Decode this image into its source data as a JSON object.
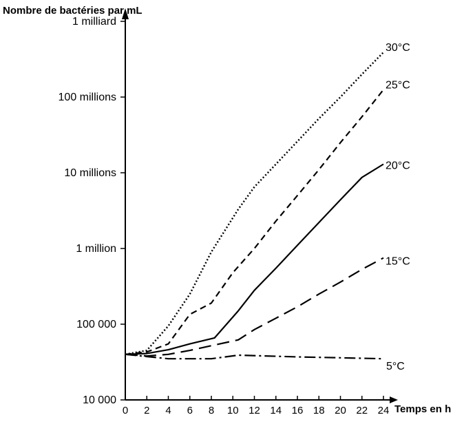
{
  "chart_data": {
    "type": "line",
    "ylabel": "Nombre de bactéries par mL",
    "xlabel": "Temps en h",
    "x_ticks": [
      "0",
      "2",
      "4",
      "6",
      "8",
      "10",
      "12",
      "14",
      "16",
      "18",
      "20",
      "22",
      "24"
    ],
    "xlim": [
      0,
      24
    ],
    "y_scale": "log",
    "ylim": [
      10000,
      1000000000
    ],
    "y_ticks": [
      {
        "value": 1000000000,
        "label": "1 milliard"
      },
      {
        "value": 100000000,
        "label": "100 millions"
      },
      {
        "value": 10000000,
        "label": "10 millions"
      },
      {
        "value": 1000000,
        "label": "1 million"
      },
      {
        "value": 100000,
        "label": "100 000"
      },
      {
        "value": 10000,
        "label": "10 000"
      }
    ],
    "grid": false,
    "series": [
      {
        "name": "30°C",
        "style": "dotted",
        "x": [
          0,
          2,
          4,
          6,
          8,
          10.5,
          12,
          14,
          16,
          18,
          20,
          22,
          24
        ],
        "y": [
          40000,
          45000,
          95000,
          250000,
          900000,
          3300000,
          6500000,
          13000000,
          26000000,
          52000000,
          100000000,
          200000000,
          390000000
        ]
      },
      {
        "name": "25°C",
        "style": "dashed",
        "x": [
          0,
          2,
          4,
          6,
          8,
          10,
          12,
          14,
          16,
          18,
          20,
          22,
          24
        ],
        "y": [
          40000,
          43000,
          55000,
          135000,
          190000,
          480000,
          1000000,
          2300000,
          5000000,
          11000000,
          25000000,
          55000000,
          125000000
        ]
      },
      {
        "name": "20°C",
        "style": "solid",
        "x": [
          0,
          2,
          4,
          6,
          8.3,
          10.5,
          12,
          14,
          16,
          18,
          20,
          22,
          24
        ],
        "y": [
          40000,
          41000,
          46000,
          55000,
          66000,
          150000,
          280000,
          550000,
          1100000,
          2200000,
          4400000,
          8700000,
          13000000
        ]
      },
      {
        "name": "15°C",
        "style": "long-dash",
        "x": [
          0,
          2,
          4,
          6,
          8,
          10.5,
          12,
          14,
          16,
          18,
          20,
          22,
          24
        ],
        "y": [
          40000,
          38000,
          40000,
          45000,
          52000,
          62000,
          85000,
          120000,
          170000,
          250000,
          360000,
          530000,
          750000
        ]
      },
      {
        "name": "5°C",
        "style": "dash-dot",
        "x": [
          0,
          4,
          8,
          10.5,
          16,
          20,
          24
        ],
        "y": [
          40000,
          35000,
          35000,
          39000,
          37000,
          36000,
          35000
        ]
      }
    ]
  }
}
